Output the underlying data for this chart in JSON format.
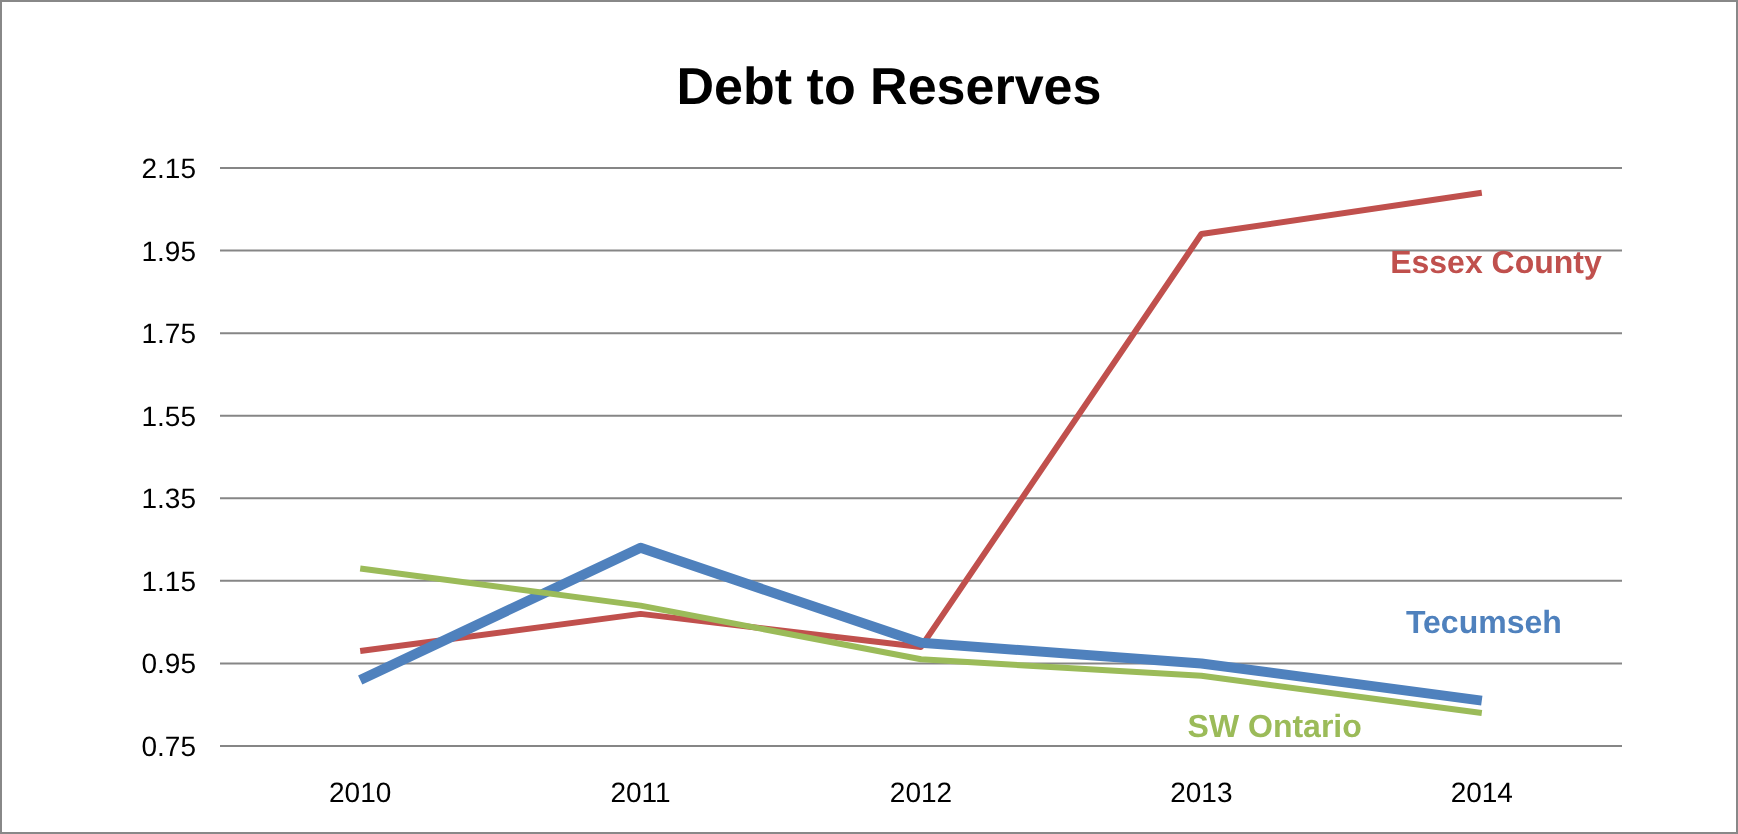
{
  "chart_data": {
    "type": "line",
    "title": "Debt to Reserves",
    "categories": [
      "2010",
      "2011",
      "2012",
      "2013",
      "2014"
    ],
    "series": [
      {
        "name": "Essex County",
        "color": "#c0504d",
        "values": [
          0.98,
          1.07,
          0.99,
          1.99,
          2.09
        ]
      },
      {
        "name": "Tecumseh",
        "color": "#4f81bd",
        "values": [
          0.91,
          1.23,
          1.0,
          0.95,
          0.86
        ]
      },
      {
        "name": "SW Ontario",
        "color": "#9bbb59",
        "values": [
          1.18,
          1.09,
          0.96,
          0.92,
          0.83
        ]
      }
    ],
    "ylim": [
      0.75,
      2.15
    ],
    "yticks": [
      0.75,
      0.95,
      1.15,
      1.35,
      1.55,
      1.75,
      1.95,
      2.15
    ],
    "grid": "y",
    "marker": "none",
    "line_style": "solid"
  }
}
